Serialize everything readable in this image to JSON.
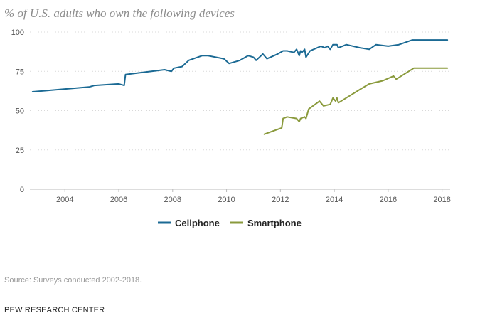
{
  "title": "% of U.S. adults who own the following devices",
  "source": "Source: Surveys conducted 2002-2018.",
  "org": "PEW RESEARCH CENTER",
  "chart_data": {
    "type": "line",
    "title": "% of U.S. adults who own the following devices",
    "xlabel": "",
    "ylabel": "",
    "xlim": [
      2002.7,
      2018.3
    ],
    "ylim": [
      0,
      100
    ],
    "x_ticks": [
      2004,
      2006,
      2008,
      2010,
      2012,
      2014,
      2016,
      2018
    ],
    "x_tick_labels": [
      "2004",
      "2006",
      "2008",
      "2010",
      "2012",
      "2014",
      "2016",
      "2018"
    ],
    "y_ticks": [
      0,
      25,
      50,
      75,
      100
    ],
    "y_tick_labels": [
      "0",
      "25",
      "50",
      "75",
      "100"
    ],
    "grid": "horizontal dotted",
    "legend_position": "bottom-center",
    "series": [
      {
        "name": "Cellphone",
        "color": "#1b6a94",
        "x": [
          2002.8,
          2004.9,
          2005.1,
          2006.0,
          2006.2,
          2006.25,
          2007.7,
          2007.95,
          2008.05,
          2008.35,
          2008.6,
          2009.1,
          2009.3,
          2009.9,
          2010.1,
          2010.5,
          2010.8,
          2011.0,
          2011.1,
          2011.35,
          2011.5,
          2011.9,
          2012.0,
          2012.1,
          2012.25,
          2012.5,
          2012.6,
          2012.7,
          2012.75,
          2012.8,
          2012.9,
          2012.95,
          2013.1,
          2013.5,
          2013.65,
          2013.75,
          2013.85,
          2013.95,
          2014.1,
          2014.15,
          2014.3,
          2014.45,
          2014.95,
          2015.3,
          2015.55,
          2016.0,
          2016.4,
          2016.9,
          2018.2
        ],
        "y": [
          62,
          65,
          66,
          67,
          66,
          73,
          76,
          75,
          77,
          78,
          82,
          85,
          85,
          83,
          80,
          82,
          85,
          84,
          82,
          86,
          83,
          86,
          87,
          88,
          88,
          87,
          89,
          85,
          88,
          87,
          89,
          84,
          88,
          91,
          90,
          91,
          89,
          92,
          92,
          90,
          91,
          92,
          90,
          89,
          92,
          91,
          92,
          95,
          95
        ]
      },
      {
        "name": "Smartphone",
        "color": "#8a9a3c",
        "x": [
          2011.4,
          2012.05,
          2012.1,
          2012.25,
          2012.6,
          2012.7,
          2012.75,
          2012.9,
          2012.95,
          2013.05,
          2013.45,
          2013.6,
          2013.85,
          2013.95,
          2014.05,
          2014.1,
          2014.15,
          2014.25,
          2015.0,
          2015.3,
          2015.8,
          2016.2,
          2016.3,
          2016.95,
          2018.2
        ],
        "y": [
          35,
          39,
          45,
          46,
          45,
          43,
          45,
          46,
          45,
          51,
          56,
          53,
          54,
          58,
          56,
          58,
          55,
          56,
          64,
          67,
          69,
          72,
          70,
          77,
          77
        ]
      }
    ]
  }
}
